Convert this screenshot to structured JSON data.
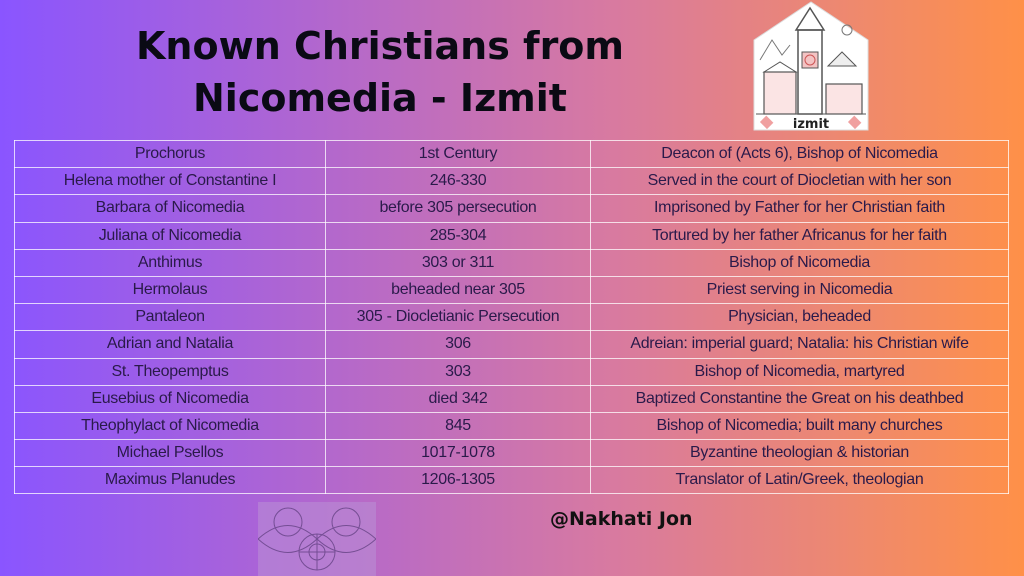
{
  "title_line1": "Known Christians from",
  "title_line2": "Nicomedia - Izmit",
  "logo_text": "izmit",
  "rows": [
    [
      "Prochorus",
      "1st Century",
      "Deacon of (Acts 6), Bishop of Nicomedia"
    ],
    [
      "Helena mother of Constantine I",
      "246-330",
      "Served in the court of Diocletian with her son"
    ],
    [
      "Barbara of Nicomedia",
      "before 305 persecution",
      "Imprisoned by Father for her Christian faith"
    ],
    [
      "Juliana of Nicomedia",
      "285-304",
      "Tortured by her father Africanus for her faith"
    ],
    [
      "Anthimus",
      "303 or 311",
      "Bishop of Nicomedia"
    ],
    [
      "Hermolaus",
      "beheaded near 305",
      "Priest serving in Nicomedia"
    ],
    [
      "Pantaleon",
      "305 - Diocletianic Persecution",
      "Physician, beheaded"
    ],
    [
      "Adrian and Natalia",
      "306",
      "Adreian: imperial guard; Natalia: his Christian wife"
    ],
    [
      "St. Theopemptus",
      "303",
      "Bishop of Nicomedia, martyred"
    ],
    [
      "Eusebius of Nicomedia",
      "died 342",
      "Baptized Constantine the Great on his deathbed"
    ],
    [
      "Theophylact of Nicomedia",
      "845",
      "Bishop of Nicomedia; built many churches"
    ],
    [
      "Michael Psellos",
      "1017-1078",
      "Byzantine theologian & historian"
    ],
    [
      "Maximus Planudes",
      "1206-1305",
      "Translator of Latin/Greek, theologian"
    ]
  ],
  "handle": "@Nakhati Jon"
}
